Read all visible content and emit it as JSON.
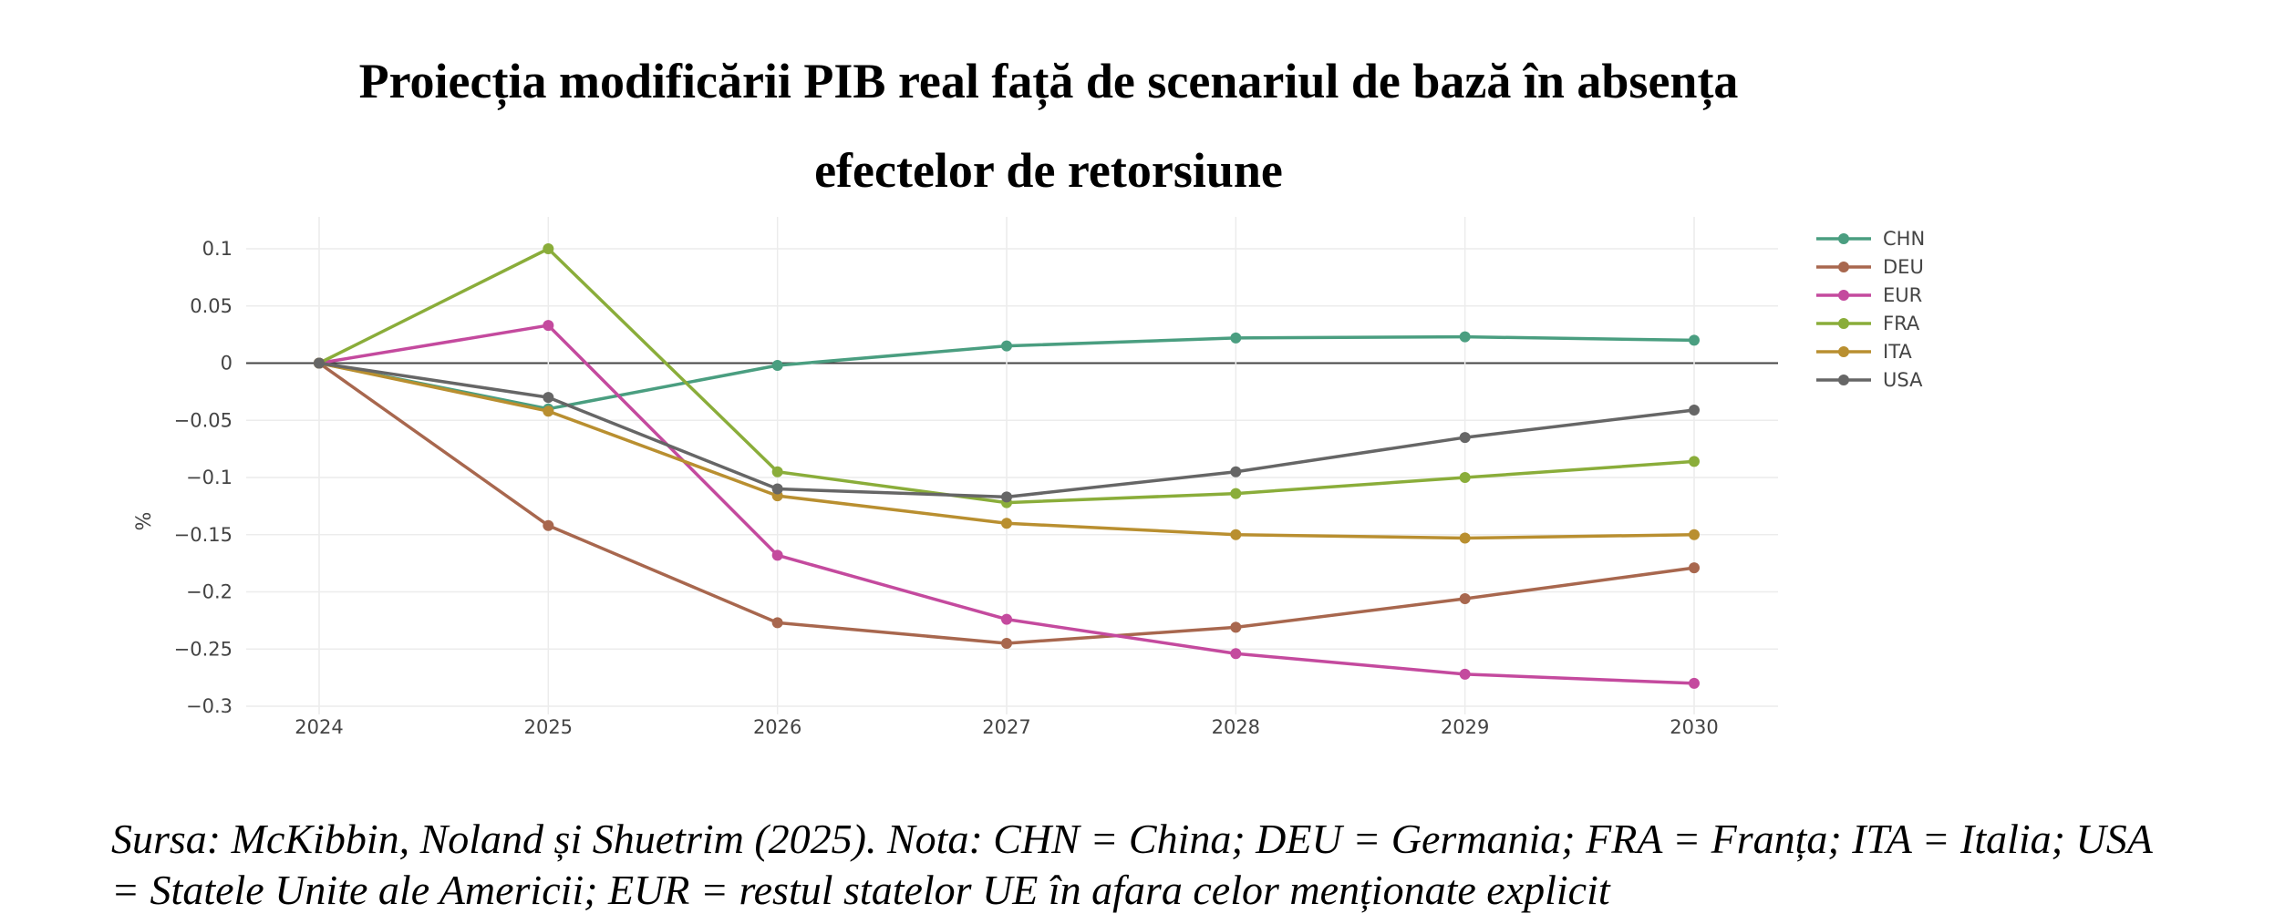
{
  "title": "Proiecția modificării PIB real față de scenariul de bază în absența efectelor de retorsiune",
  "source": "Sursa: McKibbin, Noland și Shuetrim (2025). Nota: CHN = China; DEU = Germania; FRA = Franța; ITA = Italia; USA = Statele Unite ale Americii; EUR = restul statelor UE în afara celor menționate explicit",
  "chart_data": {
    "type": "line",
    "title": "Proiecția modificării PIB real față de scenariul de bază în absența efectelor de retorsiune",
    "xlabel": "",
    "ylabel": "%",
    "x": [
      2024,
      2025,
      2026,
      2027,
      2028,
      2029,
      2030
    ],
    "ylim": [
      -0.3,
      0.1
    ],
    "yticks": [
      0.1,
      0.05,
      0,
      -0.05,
      -0.1,
      -0.15,
      -0.2,
      -0.25,
      -0.3
    ],
    "ytick_labels": [
      "0.1",
      "0.05",
      "0",
      "−0.05",
      "−0.1",
      "−0.15",
      "−0.2",
      "−0.25",
      "−0.3"
    ],
    "grid": true,
    "legend_position": "top-right",
    "series": [
      {
        "name": "CHN",
        "color": "#4a9e80",
        "values": [
          0,
          -0.04,
          -0.002,
          0.015,
          0.022,
          0.023,
          0.02
        ]
      },
      {
        "name": "DEU",
        "color": "#a8674e",
        "values": [
          0,
          -0.142,
          -0.227,
          -0.245,
          -0.231,
          -0.206,
          -0.179
        ]
      },
      {
        "name": "EUR",
        "color": "#c44a9e",
        "values": [
          0,
          0.033,
          -0.168,
          -0.224,
          -0.254,
          -0.272,
          -0.28
        ]
      },
      {
        "name": "FRA",
        "color": "#8aad3a",
        "values": [
          0,
          0.1,
          -0.095,
          -0.122,
          -0.114,
          -0.1,
          -0.086
        ]
      },
      {
        "name": "ITA",
        "color": "#b98f30",
        "values": [
          0,
          -0.042,
          -0.116,
          -0.14,
          -0.15,
          -0.153,
          -0.15
        ]
      },
      {
        "name": "USA",
        "color": "#666666",
        "values": [
          0,
          -0.03,
          -0.11,
          -0.117,
          -0.095,
          -0.065,
          -0.041
        ]
      }
    ]
  }
}
